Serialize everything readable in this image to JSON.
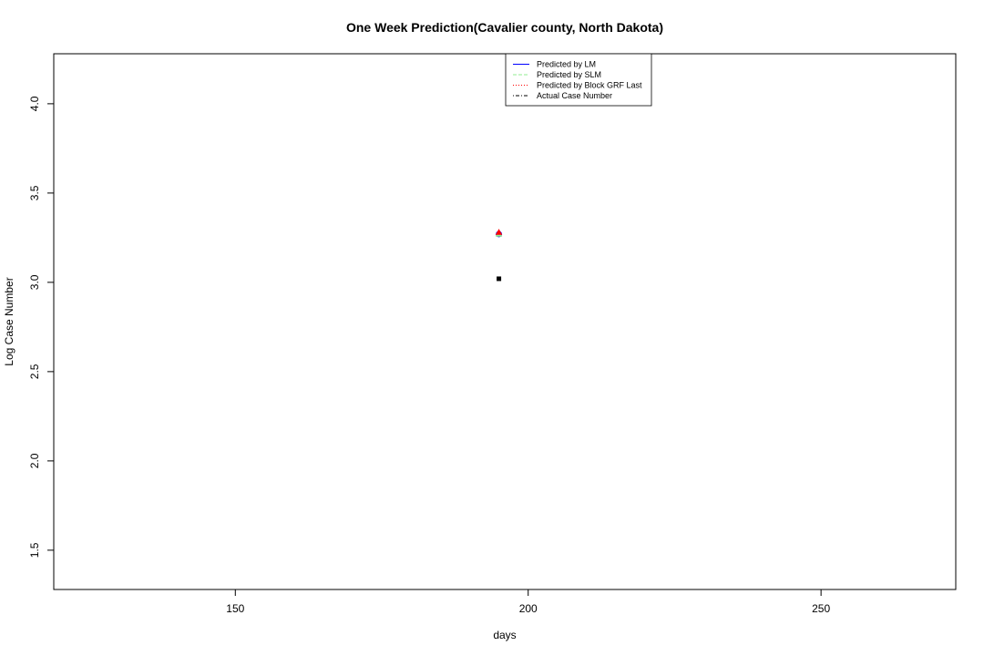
{
  "chart_data": {
    "type": "scatter",
    "title": "One Week Prediction(Cavalier county, North Dakota)",
    "xlabel": "days",
    "ylabel": "Log Case Number",
    "xlim": [
      119,
      273
    ],
    "ylim": [
      1.28,
      4.28
    ],
    "x_ticks": [
      "150",
      "200",
      "250"
    ],
    "y_ticks": [
      "1.5",
      "2.0",
      "2.5",
      "3.0",
      "3.5",
      "4.0"
    ],
    "grid": false,
    "legend_position": "top-center",
    "legend": [
      {
        "label": "Predicted by LM",
        "color": "#0000ff",
        "dash": "solid"
      },
      {
        "label": "Predicted by SLM",
        "color": "#90ee90",
        "dash": "dashed"
      },
      {
        "label": "Predicted by Block GRF Last",
        "color": "#ff0000",
        "dash": "dotted"
      },
      {
        "label": "Actual Case Number",
        "color": "#000000",
        "dash": "dotdash"
      }
    ],
    "series": [
      {
        "name": "Predicted by LM",
        "color": "#0000ff",
        "marker": "circle",
        "points": [
          [
            195,
            3.27
          ]
        ]
      },
      {
        "name": "Predicted by SLM",
        "color": "#90ee90",
        "marker": "triangle",
        "points": [
          [
            195,
            3.27
          ]
        ]
      },
      {
        "name": "Predicted by Block GRF Last",
        "color": "#ff0000",
        "marker": "triangle",
        "points": [
          [
            195,
            3.28
          ]
        ]
      },
      {
        "name": "Actual Case Number",
        "color": "#000000",
        "marker": "square",
        "points": [
          [
            195,
            3.02
          ]
        ]
      }
    ]
  }
}
